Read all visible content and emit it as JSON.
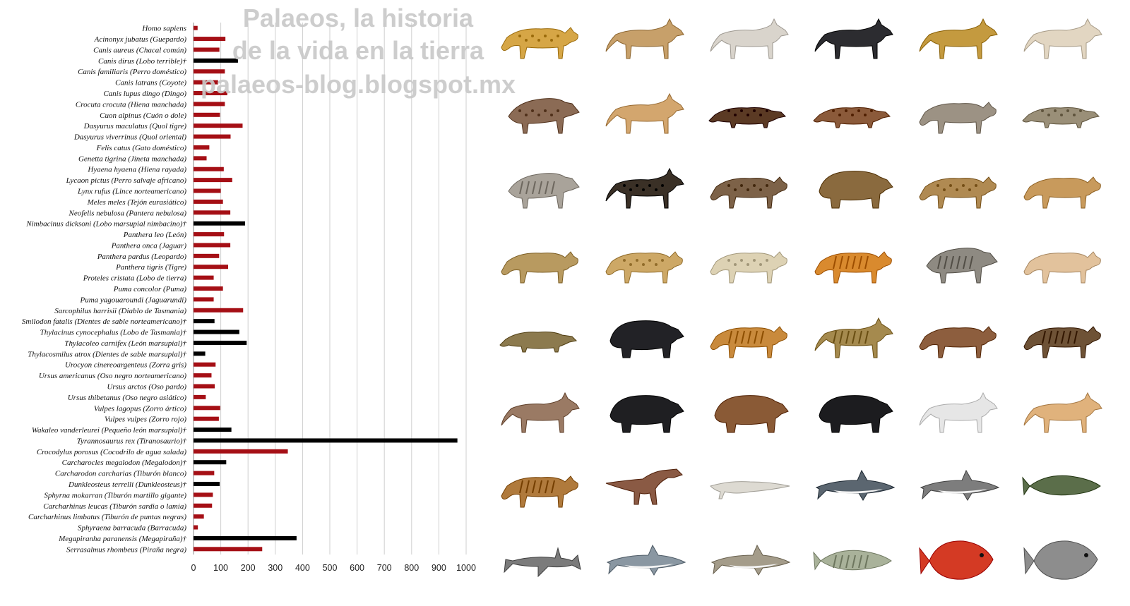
{
  "watermark": {
    "line1": "Palaeos, la historia",
    "line2": "de la vida en la tierra",
    "line3": "palaeos-blog.blogspot.mx"
  },
  "colors": {
    "extant": "#a50f15",
    "extinct": "#000000"
  },
  "chart_data": {
    "type": "bar",
    "orientation": "horizontal",
    "xlim": [
      0,
      1000
    ],
    "xticks": [
      0,
      100,
      200,
      300,
      400,
      500,
      600,
      700,
      800,
      900,
      1000
    ],
    "grid": true,
    "categories": [
      "Homo sapiens",
      "Acinonyx jubatus (Guepardo)",
      "Canis aureus (Chacal común)",
      "Canis dirus (Lobo terrible)†",
      "Canis familiaris (Perro doméstico)",
      "Canis latrans (Coyote)",
      "Canis lupus dingo (Dingo)",
      "Crocuta crocuta (Hiena manchada)",
      "Cuon alpinus (Cuón o dole)",
      "Dasyurus maculatus (Quol tigre)",
      "Dasyurus viverrinus (Quol oriental)",
      "Felis catus (Gato doméstico)",
      "Genetta tigrina (Jineta manchada)",
      "Hyaena hyaena (Hiena rayada)",
      "Lycaon pictus (Perro salvaje africano)",
      "Lynx rufus (Lince norteamericano)",
      "Meles meles (Tejón eurasiático)",
      "Neofelis nebulosa (Pantera nebulosa)",
      "Nimbacinus dicksoni (Lobo marsupial nimbacino)†",
      "Panthera leo (León)",
      "Panthera onca (Jaguar)",
      "Panthera pardus (Leopardo)",
      "Panthera tigris (Tigre)",
      "Proteles cristata (Lobo de tierra)",
      "Puma concolor (Puma)",
      "Puma yagouaroundi (Jaguarundi)",
      "Sarcophilus harrisii (Diablo de Tasmania)",
      "Smilodon fatalis (Dientes de sable norteamericano)†",
      "Thylacinus cynocephalus (Lobo de Tasmania)†",
      "Thylacoleo carnifex (León marsupial)†",
      "Thylacosmilus atrox (Dientes de sable marsupial)†",
      "Urocyon cinereoargenteus (Zorra gris)",
      "Ursus americanus (Oso negro norteamericano)",
      "Ursus arctos (Oso pardo)",
      "Ursus thibetanus (Oso negro asiático)",
      "Vulpes lagopus (Zorro ártico)",
      "Vulpes vulpes (Zorro rojo)",
      "Wakaleo vanderleurei (Pequeño león marsupial)†",
      "Tyrannosaurus rex (Tiranosaurio)†",
      "Crocodylus porosus (Cocodrilo de agua salada)",
      "Carcharocles megalodon (Megalodon)†",
      "Carcharodon carcharias (Tiburón blanco)",
      "Dunkleosteus terrelli (Dunkleosteus)†",
      "Sphyrna mokarran (Tiburón martillo gigante)",
      "Carcharhinus leucas (Tiburón sardia o lamia)",
      "Carcharhinus limbatus (Tiburón de puntas negras)",
      "Sphyraena barracuda (Barracuda)",
      "Megapiranha paranensis (Megapiraña)†",
      "Serrasalmus rhombeus (Piraña negra)"
    ],
    "values": [
      15,
      117,
      95,
      163,
      115,
      90,
      124,
      115,
      97,
      180,
      136,
      58,
      48,
      111,
      142,
      100,
      108,
      135,
      189,
      112,
      135,
      94,
      127,
      74,
      108,
      74,
      182,
      77,
      168,
      195,
      43,
      81,
      66,
      78,
      45,
      98,
      93,
      139,
      968,
      346,
      120,
      76,
      96,
      71,
      68,
      38,
      16,
      378,
      252
    ],
    "extinct": [
      false,
      false,
      false,
      true,
      false,
      false,
      false,
      false,
      false,
      false,
      false,
      false,
      false,
      false,
      false,
      false,
      false,
      false,
      true,
      false,
      false,
      false,
      false,
      false,
      false,
      false,
      false,
      true,
      true,
      true,
      true,
      false,
      false,
      false,
      false,
      false,
      false,
      true,
      true,
      false,
      true,
      false,
      true,
      false,
      false,
      false,
      false,
      true,
      false
    ]
  },
  "gallery": {
    "rows": 8,
    "cols": 6,
    "animals": [
      {
        "kind": "cat",
        "color": "#d6a646",
        "spots": true
      },
      {
        "kind": "canid",
        "color": "#c7a06a"
      },
      {
        "kind": "canid",
        "color": "#d9d4cc"
      },
      {
        "kind": "canid",
        "color": "#2c2c30"
      },
      {
        "kind": "canid",
        "color": "#c49a3f"
      },
      {
        "kind": "canid",
        "color": "#e2d6c2"
      },
      {
        "kind": "hyena",
        "color": "#8b6b55",
        "spots": true
      },
      {
        "kind": "canid",
        "color": "#d3a66e"
      },
      {
        "kind": "small",
        "color": "#5b3a24",
        "spots": true
      },
      {
        "kind": "small",
        "color": "#8b5a3a",
        "spots": true
      },
      {
        "kind": "cat",
        "color": "#9c9284"
      },
      {
        "kind": "small",
        "color": "#9a8f78",
        "spots": true
      },
      {
        "kind": "hyena",
        "color": "#a9a39a",
        "stripes": true
      },
      {
        "kind": "canid",
        "color": "#3a3026",
        "spots": true
      },
      {
        "kind": "cat",
        "color": "#7d6248",
        "spots": true
      },
      {
        "kind": "bear",
        "color": "#8a6a3e"
      },
      {
        "kind": "cat",
        "color": "#b08a52",
        "spots": true
      },
      {
        "kind": "cat",
        "color": "#c89a5c"
      },
      {
        "kind": "cat",
        "color": "#b89a60"
      },
      {
        "kind": "cat",
        "color": "#cda866",
        "spots": true
      },
      {
        "kind": "cat",
        "color": "#ddd2b4",
        "spots": true
      },
      {
        "kind": "cat",
        "color": "#d98a2e",
        "stripes": true
      },
      {
        "kind": "hyena",
        "color": "#8e8a82",
        "stripes": true
      },
      {
        "kind": "cat",
        "color": "#e2c29c"
      },
      {
        "kind": "small",
        "color": "#8c7a4e"
      },
      {
        "kind": "bear",
        "color": "#222226"
      },
      {
        "kind": "cat",
        "color": "#c98a3c",
        "stripes": true
      },
      {
        "kind": "canid",
        "color": "#a58a4e",
        "stripes": true
      },
      {
        "kind": "cat",
        "color": "#8d5e3e"
      },
      {
        "kind": "cat",
        "color": "#6e5236",
        "stripes": true
      },
      {
        "kind": "canid",
        "color": "#9a7a64"
      },
      {
        "kind": "bear",
        "color": "#1f1f22"
      },
      {
        "kind": "bear",
        "color": "#8a5a36"
      },
      {
        "kind": "bear",
        "color": "#1c1c1f"
      },
      {
        "kind": "canid",
        "color": "#e6e6e6"
      },
      {
        "kind": "canid",
        "color": "#e0b27c"
      },
      {
        "kind": "cat",
        "color": "#b07a3c",
        "stripes": true
      },
      {
        "kind": "dino",
        "color": "#8a5a44"
      },
      {
        "kind": "croc",
        "color": "#dddad2"
      },
      {
        "kind": "shark",
        "color": "#5b6670"
      },
      {
        "kind": "shark",
        "color": "#7d7d7d"
      },
      {
        "kind": "fish",
        "color": "#5b6e4a"
      },
      {
        "kind": "hammer",
        "color": "#7b7b7b"
      },
      {
        "kind": "shark",
        "color": "#8a97a2"
      },
      {
        "kind": "shark",
        "color": "#a49c8a"
      },
      {
        "kind": "fish",
        "color": "#a9b29a",
        "stripes": true
      },
      {
        "kind": "piranha",
        "color": "#d43a24"
      },
      {
        "kind": "piranha",
        "color": "#8d8d8d"
      }
    ]
  }
}
